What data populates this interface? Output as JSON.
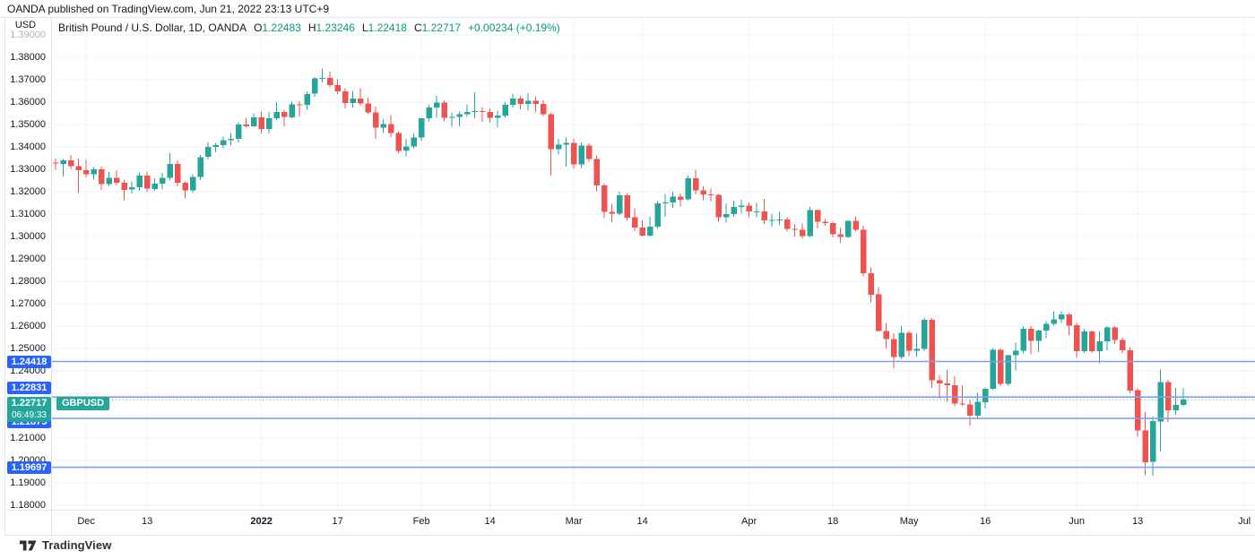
{
  "attribution": "OANDA published on TradingView.com, Jun 21, 2022 23:13 UTC+9",
  "header": {
    "symbol_title": "British Pound / U.S. Dollar, 1D, OANDA",
    "ohlc": {
      "open_label": "O",
      "open": "1.22483",
      "high_label": "H",
      "high": "1.23246",
      "low_label": "L",
      "low": "1.22418",
      "close_label": "C",
      "close": "1.22717",
      "change": "+0.00234 (+0.19%)"
    }
  },
  "price_axis": {
    "currency": "USD",
    "faded_top_tick": {
      "value": 1.39,
      "label": "1.39000"
    },
    "ticks": [
      {
        "value": 1.38,
        "label": "1.38000"
      },
      {
        "value": 1.37,
        "label": "1.37000"
      },
      {
        "value": 1.36,
        "label": "1.36000"
      },
      {
        "value": 1.35,
        "label": "1.35000"
      },
      {
        "value": 1.34,
        "label": "1.34000"
      },
      {
        "value": 1.33,
        "label": "1.33000"
      },
      {
        "value": 1.32,
        "label": "1.32000"
      },
      {
        "value": 1.31,
        "label": "1.31000"
      },
      {
        "value": 1.3,
        "label": "1.30000"
      },
      {
        "value": 1.29,
        "label": "1.29000"
      },
      {
        "value": 1.28,
        "label": "1.28000"
      },
      {
        "value": 1.27,
        "label": "1.27000"
      },
      {
        "value": 1.26,
        "label": "1.26000"
      },
      {
        "value": 1.25,
        "label": "1.25000"
      },
      {
        "value": 1.24,
        "label": "1.24000"
      },
      {
        "value": 1.21,
        "label": "1.21000"
      },
      {
        "value": 1.2,
        "label": "1.20000"
      },
      {
        "value": 1.19,
        "label": "1.19000"
      },
      {
        "value": 1.18,
        "label": "1.18000"
      }
    ]
  },
  "time_axis": {
    "ticks": [
      {
        "label": "Dec",
        "index": 4
      },
      {
        "label": "13",
        "index": 12
      },
      {
        "label": "2022",
        "index": 27,
        "emphasis": true
      },
      {
        "label": "17",
        "index": 37
      },
      {
        "label": "Feb",
        "index": 48
      },
      {
        "label": "14",
        "index": 57
      },
      {
        "label": "Mar",
        "index": 68
      },
      {
        "label": "14",
        "index": 77
      },
      {
        "label": "Apr",
        "index": 91
      },
      {
        "label": "18",
        "index": 102
      },
      {
        "label": "May",
        "index": 112
      },
      {
        "label": "16",
        "index": 122
      },
      {
        "label": "Jun",
        "index": 134
      },
      {
        "label": "13",
        "index": 142
      },
      {
        "label": "Jul",
        "index": 156
      }
    ]
  },
  "levels": [
    {
      "price": 1.24418,
      "label": "1.24418",
      "label_dy": 0
    },
    {
      "price": 1.22831,
      "label": "1.22831",
      "label_dy": -10
    },
    {
      "price": 1.21875,
      "label": "1.21875",
      "label_dy": 4
    },
    {
      "price": 1.19697,
      "label": "1.19697",
      "label_dy": 0
    }
  ],
  "current_price": {
    "value": 1.22717,
    "label": "1.22717",
    "countdown": "06:49:33",
    "symbol_tag": "GBPUSD"
  },
  "footer": {
    "brand": "TradingView"
  },
  "colors": {
    "up": "#26a69a",
    "down": "#ef5350",
    "grid": "#f0f3fa",
    "border": "#e0e3eb",
    "level_line": "#7da0f2",
    "level_label_bg": "#2962ff",
    "current_line": "#26a69a",
    "current_label_bg": "#26a69a",
    "value_text": "#089981",
    "text": "#131722"
  },
  "chart_data": {
    "type": "candlestick",
    "title": "British Pound / U.S. Dollar, 1D, OANDA",
    "symbol": "GBPUSD",
    "timeframe": "1D",
    "ylabel": "USD",
    "ylim": [
      1.178,
      1.398
    ],
    "x_index_range": [
      -0.6,
      157.4
    ],
    "grid": true,
    "price_grid_step": 0.01,
    "columns": [
      "date",
      "open",
      "high",
      "low",
      "close"
    ],
    "candles": [
      [
        "2021-11-25",
        1.333,
        1.3348,
        1.3298,
        1.3325
      ],
      [
        "2021-11-26",
        1.3325,
        1.3345,
        1.3268,
        1.334
      ],
      [
        "2021-11-29",
        1.334,
        1.3363,
        1.3301,
        1.3314
      ],
      [
        "2021-11-30",
        1.3314,
        1.3348,
        1.3195,
        1.3296
      ],
      [
        "2021-12-01",
        1.3296,
        1.3344,
        1.3264,
        1.3278
      ],
      [
        "2021-12-02",
        1.3278,
        1.331,
        1.3255,
        1.33
      ],
      [
        "2021-12-03",
        1.33,
        1.3311,
        1.3208,
        1.3234
      ],
      [
        "2021-12-06",
        1.3234,
        1.3288,
        1.3225,
        1.3262
      ],
      [
        "2021-12-07",
        1.3262,
        1.3296,
        1.3227,
        1.324
      ],
      [
        "2021-12-08",
        1.324,
        1.3254,
        1.3161,
        1.3209
      ],
      [
        "2021-12-09",
        1.3209,
        1.3246,
        1.3192,
        1.3219
      ],
      [
        "2021-12-10",
        1.3219,
        1.3286,
        1.3203,
        1.3271
      ],
      [
        "2021-12-13",
        1.3271,
        1.3289,
        1.3198,
        1.3213
      ],
      [
        "2021-12-14",
        1.3213,
        1.326,
        1.3203,
        1.3236
      ],
      [
        "2021-12-15",
        1.3236,
        1.3284,
        1.3209,
        1.3262
      ],
      [
        "2021-12-16",
        1.3262,
        1.3375,
        1.3253,
        1.3323
      ],
      [
        "2021-12-17",
        1.3323,
        1.3339,
        1.3224,
        1.3239
      ],
      [
        "2021-12-20",
        1.3239,
        1.3245,
        1.317,
        1.3205
      ],
      [
        "2021-12-21",
        1.3205,
        1.3277,
        1.3195,
        1.3266
      ],
      [
        "2021-12-22",
        1.3266,
        1.3364,
        1.3251,
        1.3355
      ],
      [
        "2021-12-23",
        1.3355,
        1.3419,
        1.3343,
        1.3399
      ],
      [
        "2021-12-24",
        1.3399,
        1.3418,
        1.3377,
        1.3407
      ],
      [
        "2021-12-27",
        1.3407,
        1.3445,
        1.3393,
        1.343
      ],
      [
        "2021-12-28",
        1.343,
        1.3462,
        1.3405,
        1.3437
      ],
      [
        "2021-12-29",
        1.3437,
        1.3509,
        1.342,
        1.35
      ],
      [
        "2021-12-30",
        1.35,
        1.353,
        1.3488,
        1.3493
      ],
      [
        "2021-12-31",
        1.3493,
        1.355,
        1.3489,
        1.3532
      ],
      [
        "2022-01-03",
        1.3532,
        1.3558,
        1.346,
        1.3479
      ],
      [
        "2022-01-04",
        1.3479,
        1.3556,
        1.3459,
        1.3527
      ],
      [
        "2022-01-05",
        1.3527,
        1.3599,
        1.352,
        1.3555
      ],
      [
        "2022-01-06",
        1.3555,
        1.3566,
        1.3492,
        1.3533
      ],
      [
        "2022-01-07",
        1.3533,
        1.3602,
        1.3527,
        1.359
      ],
      [
        "2022-01-10",
        1.359,
        1.3603,
        1.3535,
        1.3588
      ],
      [
        "2022-01-11",
        1.3588,
        1.3645,
        1.3566,
        1.3637
      ],
      [
        "2022-01-12",
        1.3637,
        1.3712,
        1.3623,
        1.3705
      ],
      [
        "2022-01-13",
        1.3705,
        1.3749,
        1.3687,
        1.3707
      ],
      [
        "2022-01-14",
        1.3707,
        1.3738,
        1.3665,
        1.3675
      ],
      [
        "2022-01-17",
        1.3675,
        1.3701,
        1.3637,
        1.3647
      ],
      [
        "2022-01-18",
        1.3647,
        1.3662,
        1.3572,
        1.3595
      ],
      [
        "2022-01-19",
        1.3595,
        1.3649,
        1.3576,
        1.3616
      ],
      [
        "2022-01-20",
        1.3616,
        1.3661,
        1.3584,
        1.3594
      ],
      [
        "2022-01-21",
        1.3594,
        1.362,
        1.3547,
        1.3553
      ],
      [
        "2022-01-24",
        1.3553,
        1.358,
        1.3437,
        1.3485
      ],
      [
        "2022-01-25",
        1.3485,
        1.3523,
        1.3462,
        1.3501
      ],
      [
        "2022-01-26",
        1.3501,
        1.3541,
        1.3443,
        1.3462
      ],
      [
        "2022-01-27",
        1.3462,
        1.3467,
        1.3371,
        1.3383
      ],
      [
        "2022-01-28",
        1.3383,
        1.3437,
        1.3358,
        1.3401
      ],
      [
        "2022-01-31",
        1.3401,
        1.346,
        1.3391,
        1.3441
      ],
      [
        "2022-02-01",
        1.3441,
        1.3529,
        1.3427,
        1.3527
      ],
      [
        "2022-02-02",
        1.3527,
        1.3588,
        1.3515,
        1.3575
      ],
      [
        "2022-02-03",
        1.3575,
        1.3628,
        1.3529,
        1.3598
      ],
      [
        "2022-02-04",
        1.3598,
        1.3608,
        1.3515,
        1.3529
      ],
      [
        "2022-02-07",
        1.3529,
        1.3553,
        1.3489,
        1.3534
      ],
      [
        "2022-02-08",
        1.3534,
        1.3558,
        1.3492,
        1.3546
      ],
      [
        "2022-02-09",
        1.3546,
        1.3589,
        1.3534,
        1.3557
      ],
      [
        "2022-02-10",
        1.3557,
        1.3644,
        1.3527,
        1.356
      ],
      [
        "2022-02-11",
        1.356,
        1.3578,
        1.3512,
        1.3556
      ],
      [
        "2022-02-14",
        1.3556,
        1.357,
        1.3507,
        1.353
      ],
      [
        "2022-02-15",
        1.353,
        1.3561,
        1.3487,
        1.3539
      ],
      [
        "2022-02-16",
        1.3539,
        1.3599,
        1.3532,
        1.3588
      ],
      [
        "2022-02-17",
        1.3588,
        1.3639,
        1.3577,
        1.3617
      ],
      [
        "2022-02-18",
        1.3617,
        1.3626,
        1.3568,
        1.3592
      ],
      [
        "2022-02-21",
        1.3592,
        1.364,
        1.3562,
        1.3606
      ],
      [
        "2022-02-22",
        1.3606,
        1.3625,
        1.3554,
        1.3592
      ],
      [
        "2022-02-23",
        1.3592,
        1.3608,
        1.3536,
        1.3545
      ],
      [
        "2022-02-24",
        1.3545,
        1.3551,
        1.3273,
        1.3389
      ],
      [
        "2022-02-25",
        1.3389,
        1.3437,
        1.3365,
        1.341
      ],
      [
        "2022-02-28",
        1.341,
        1.3442,
        1.3312,
        1.3418
      ],
      [
        "2022-03-01",
        1.3418,
        1.3437,
        1.3303,
        1.3322
      ],
      [
        "2022-03-02",
        1.3322,
        1.3419,
        1.3305,
        1.3406
      ],
      [
        "2022-03-03",
        1.3406,
        1.3417,
        1.3335,
        1.3345
      ],
      [
        "2022-03-04",
        1.3345,
        1.3361,
        1.3201,
        1.3227
      ],
      [
        "2022-03-07",
        1.3227,
        1.3236,
        1.3082,
        1.311
      ],
      [
        "2022-03-08",
        1.311,
        1.3146,
        1.3064,
        1.3101
      ],
      [
        "2022-03-09",
        1.3101,
        1.3199,
        1.3095,
        1.3184
      ],
      [
        "2022-03-10",
        1.3184,
        1.3194,
        1.3073,
        1.3085
      ],
      [
        "2022-03-11",
        1.3085,
        1.3125,
        1.3023,
        1.3039
      ],
      [
        "2022-03-14",
        1.3039,
        1.3073,
        1.2999,
        1.3004
      ],
      [
        "2022-03-15",
        1.3004,
        1.3088,
        1.3,
        1.3044
      ],
      [
        "2022-03-16",
        1.3044,
        1.3157,
        1.3035,
        1.3148
      ],
      [
        "2022-03-17",
        1.3148,
        1.319,
        1.3088,
        1.3152
      ],
      [
        "2022-03-18",
        1.3152,
        1.3199,
        1.3128,
        1.3178
      ],
      [
        "2022-03-21",
        1.3178,
        1.3192,
        1.3134,
        1.3165
      ],
      [
        "2022-03-22",
        1.3165,
        1.3272,
        1.3161,
        1.3259
      ],
      [
        "2022-03-23",
        1.3259,
        1.3298,
        1.3187,
        1.3205
      ],
      [
        "2022-03-24",
        1.3205,
        1.3223,
        1.3162,
        1.3188
      ],
      [
        "2022-03-25",
        1.3188,
        1.3215,
        1.3156,
        1.3185
      ],
      [
        "2022-03-28",
        1.3185,
        1.319,
        1.3065,
        1.3086
      ],
      [
        "2022-03-29",
        1.3086,
        1.3145,
        1.3062,
        1.31
      ],
      [
        "2022-03-30",
        1.31,
        1.3159,
        1.3087,
        1.3133
      ],
      [
        "2022-03-31",
        1.3133,
        1.3163,
        1.3103,
        1.3138
      ],
      [
        "2022-04-01",
        1.3138,
        1.3151,
        1.3086,
        1.3112
      ],
      [
        "2022-04-04",
        1.3112,
        1.3149,
        1.3085,
        1.3113
      ],
      [
        "2022-04-05",
        1.3113,
        1.3168,
        1.3055,
        1.3073
      ],
      [
        "2022-04-06",
        1.3073,
        1.3099,
        1.3044,
        1.3074
      ],
      [
        "2022-04-07",
        1.3074,
        1.3112,
        1.3052,
        1.3076
      ],
      [
        "2022-04-08",
        1.3076,
        1.3085,
        1.3021,
        1.3034
      ],
      [
        "2022-04-11",
        1.3034,
        1.3054,
        1.2999,
        1.303
      ],
      [
        "2022-04-12",
        1.303,
        1.3057,
        1.299,
        1.3001
      ],
      [
        "2022-04-13",
        1.3001,
        1.3132,
        1.2998,
        1.3117
      ],
      [
        "2022-04-14",
        1.3117,
        1.312,
        1.3035,
        1.3065
      ],
      [
        "2022-04-15",
        1.3065,
        1.3078,
        1.3048,
        1.306
      ],
      [
        "2022-04-18",
        1.306,
        1.3065,
        1.2995,
        1.301
      ],
      [
        "2022-04-19",
        1.301,
        1.3038,
        1.2972,
        1.2998
      ],
      [
        "2022-04-20",
        1.2998,
        1.3073,
        1.2992,
        1.307
      ],
      [
        "2022-04-21",
        1.307,
        1.309,
        1.3021,
        1.3029
      ],
      [
        "2022-04-22",
        1.3029,
        1.3048,
        1.2822,
        1.2836
      ],
      [
        "2022-04-25",
        1.2836,
        1.2861,
        1.2707,
        1.2741
      ],
      [
        "2022-04-26",
        1.2741,
        1.2773,
        1.2575,
        1.2578
      ],
      [
        "2022-04-27",
        1.2578,
        1.2611,
        1.25,
        1.2542
      ],
      [
        "2022-04-28",
        1.2542,
        1.2569,
        1.2411,
        1.2462
      ],
      [
        "2022-04-29",
        1.2462,
        1.2602,
        1.2451,
        1.257
      ],
      [
        "2022-05-02",
        1.257,
        1.2578,
        1.2466,
        1.249
      ],
      [
        "2022-05-03",
        1.249,
        1.2568,
        1.2461,
        1.2497
      ],
      [
        "2022-05-04",
        1.2497,
        1.2638,
        1.2489,
        1.2628
      ],
      [
        "2022-05-05",
        1.2628,
        1.2635,
        1.2325,
        1.2357
      ],
      [
        "2022-05-06",
        1.2357,
        1.238,
        1.2276,
        1.2344
      ],
      [
        "2022-05-09",
        1.2344,
        1.2406,
        1.2262,
        1.2336
      ],
      [
        "2022-05-10",
        1.2336,
        1.2376,
        1.2241,
        1.2254
      ],
      [
        "2022-05-11",
        1.2254,
        1.2336,
        1.2243,
        1.225
      ],
      [
        "2022-05-12",
        1.225,
        1.2268,
        1.2155,
        1.22
      ],
      [
        "2022-05-13",
        1.22,
        1.2301,
        1.2188,
        1.2261
      ],
      [
        "2022-05-16",
        1.2261,
        1.2326,
        1.2232,
        1.232
      ],
      [
        "2022-05-17",
        1.232,
        1.2499,
        1.2313,
        1.2494
      ],
      [
        "2022-05-18",
        1.2494,
        1.25,
        1.2332,
        1.2343
      ],
      [
        "2022-05-19",
        1.2343,
        1.2472,
        1.2333,
        1.247
      ],
      [
        "2022-05-20",
        1.247,
        1.2525,
        1.2401,
        1.249
      ],
      [
        "2022-05-23",
        1.249,
        1.2598,
        1.2477,
        1.2588
      ],
      [
        "2022-05-24",
        1.2588,
        1.2599,
        1.2473,
        1.2533
      ],
      [
        "2022-05-25",
        1.2533,
        1.2584,
        1.2483,
        1.258
      ],
      [
        "2022-05-26",
        1.258,
        1.2621,
        1.2546,
        1.261
      ],
      [
        "2022-05-27",
        1.261,
        1.2667,
        1.2602,
        1.2631
      ],
      [
        "2022-05-30",
        1.2631,
        1.2666,
        1.2613,
        1.2652
      ],
      [
        "2022-05-31",
        1.2652,
        1.2658,
        1.256,
        1.2603
      ],
      [
        "2022-06-01",
        1.2603,
        1.2614,
        1.2458,
        1.2487
      ],
      [
        "2022-06-02",
        1.2487,
        1.2589,
        1.2482,
        1.2575
      ],
      [
        "2022-06-03",
        1.2575,
        1.258,
        1.248,
        1.2488
      ],
      [
        "2022-06-06",
        1.2488,
        1.2576,
        1.2433,
        1.2532
      ],
      [
        "2022-06-07",
        1.2532,
        1.2599,
        1.2491,
        1.2593
      ],
      [
        "2022-06-08",
        1.2593,
        1.26,
        1.2519,
        1.2537
      ],
      [
        "2022-06-09",
        1.2537,
        1.2548,
        1.2477,
        1.2492
      ],
      [
        "2022-06-10",
        1.2492,
        1.2507,
        1.2299,
        1.2313
      ],
      [
        "2022-06-13",
        1.2313,
        1.2322,
        1.2106,
        1.2134
      ],
      [
        "2022-06-14",
        1.2134,
        1.2216,
        1.1934,
        1.1993
      ],
      [
        "2022-06-15",
        1.1993,
        1.2195,
        1.1932,
        1.2175
      ],
      [
        "2022-06-16",
        1.2175,
        1.2406,
        1.2041,
        1.235
      ],
      [
        "2022-06-17",
        1.235,
        1.236,
        1.2172,
        1.2225
      ],
      [
        "2022-06-20",
        1.2225,
        1.2325,
        1.2205,
        1.2248
      ],
      [
        "2022-06-21",
        1.2248,
        1.2325,
        1.2242,
        1.2272
      ]
    ],
    "levels": [
      1.24418,
      1.22831,
      1.21875,
      1.19697
    ],
    "last_price": 1.22717
  }
}
